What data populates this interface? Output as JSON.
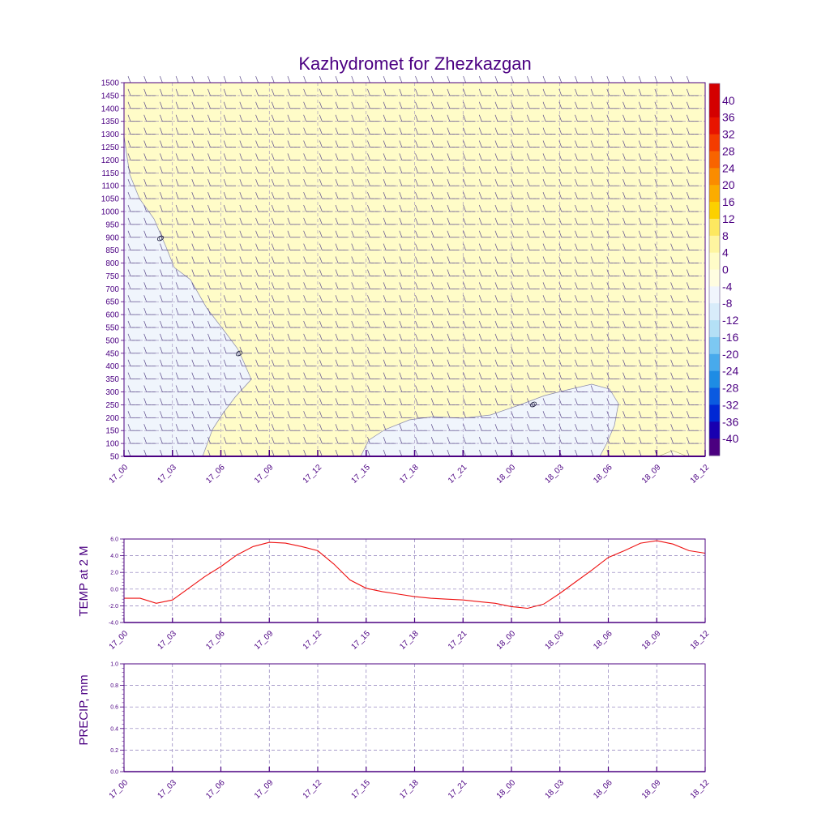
{
  "chart_data": [
    {
      "type": "heatmap",
      "title": "Kazhydromet for Zhezkazgan",
      "y_ticks": [
        "1500",
        "1450",
        "1400",
        "1350",
        "1300",
        "1250",
        "1200",
        "1150",
        "1100",
        "1050",
        "1000",
        "950",
        "900",
        "850",
        "800",
        "750",
        "700",
        "650",
        "600",
        "550",
        "500",
        "450",
        "400",
        "350",
        "300",
        "250",
        "200",
        "150",
        "100",
        "50"
      ],
      "x_ticks": [
        "17_00",
        "17_03",
        "17_06",
        "17_09",
        "17_12",
        "17_15",
        "17_18",
        "17_21",
        "18_00",
        "18_03",
        "18_06",
        "18_09",
        "18_12"
      ],
      "ylim": [
        50,
        1500
      ],
      "colorbar_labels": [
        "40",
        "36",
        "32",
        "28",
        "24",
        "20",
        "16",
        "12",
        "8",
        "4",
        "0",
        "-4",
        "-8",
        "-12",
        "-16",
        "-20",
        "-24",
        "-28",
        "-32",
        "-36",
        "-40"
      ],
      "colorbar_colors": [
        "#d40000",
        "#e81400",
        "#f43c00",
        "#f86400",
        "#fa8c00",
        "#fbac00",
        "#fcd000",
        "#fde860",
        "#fef5a0",
        "#fffcc8",
        "#fffde0",
        "#f0f5fc",
        "#d8ecfa",
        "#b4e0f6",
        "#7cc8f2",
        "#48aaec",
        "#1e8ce4",
        "#0a5ae0",
        "#0028d4",
        "#1800b0",
        "#4b0080"
      ],
      "contour_labels": [
        "0",
        "0",
        "0"
      ],
      "fill_colors": {
        "warm": "#fffcc8",
        "cold": "#f0f5fc"
      }
    },
    {
      "type": "line",
      "ylabel": "TEMP at 2 M",
      "y_ticks": [
        "6.0",
        "4.0",
        "2.0",
        "0.0",
        "-2.0",
        "-4.0"
      ],
      "ylim": [
        -4,
        6
      ],
      "x_ticks": [
        "17_00",
        "17_03",
        "17_06",
        "17_09",
        "17_12",
        "17_15",
        "17_18",
        "17_21",
        "18_00",
        "18_03",
        "18_06",
        "18_09",
        "18_12"
      ],
      "x": [
        0,
        1,
        2,
        3,
        4,
        5,
        6,
        7,
        8,
        9,
        10,
        11,
        12,
        13,
        14,
        15,
        16,
        17,
        18,
        19,
        20,
        21,
        22,
        23,
        24,
        25,
        26,
        27,
        28,
        29,
        30,
        31,
        32,
        33,
        34,
        35,
        36
      ],
      "values": [
        -1.1,
        -1.1,
        -1.7,
        -1.3,
        0.1,
        1.5,
        2.7,
        4.1,
        5.1,
        5.6,
        5.5,
        5.1,
        4.6,
        3.0,
        1.1,
        0.1,
        -0.3,
        -0.6,
        -0.9,
        -1.1,
        -1.2,
        -1.3,
        -1.5,
        -1.7,
        -2.1,
        -2.3,
        -1.8,
        -0.5,
        0.9,
        2.3,
        3.8,
        4.6,
        5.5,
        5.8,
        5.4,
        4.6,
        4.3
      ],
      "line_color": "#ee1111"
    },
    {
      "type": "line",
      "ylabel": "PRECIP, mm",
      "y_ticks": [
        "1.0",
        "0.8",
        "0.6",
        "0.4",
        "0.2",
        "0.0"
      ],
      "ylim": [
        0,
        1
      ],
      "x_ticks": [
        "17_00",
        "17_03",
        "17_06",
        "17_09",
        "17_12",
        "17_15",
        "17_18",
        "17_21",
        "18_00",
        "18_03",
        "18_06",
        "18_09",
        "18_12"
      ]
    }
  ]
}
